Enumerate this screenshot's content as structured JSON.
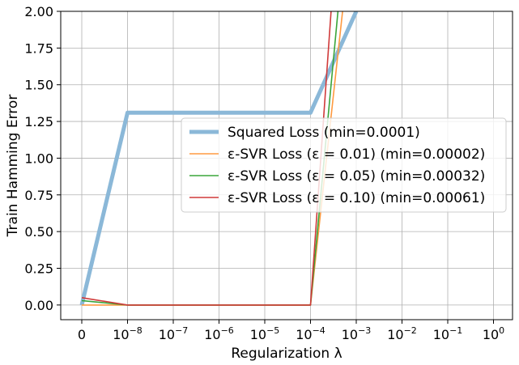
{
  "chart_data": {
    "type": "line",
    "xlabel": "Regularization λ",
    "ylabel": "Train Hamming Error",
    "ylim": [
      -0.1,
      2.0
    ],
    "yticks": [
      0.0,
      0.25,
      0.5,
      0.75,
      1.0,
      1.25,
      1.5,
      1.75,
      2.0
    ],
    "ytick_labels": [
      "0.00",
      "0.25",
      "0.50",
      "0.75",
      "1.00",
      "1.25",
      "1.50",
      "1.75",
      "2.00"
    ],
    "xticks": [
      {
        "base": "0",
        "exp": ""
      },
      {
        "base": "10",
        "exp": "−8"
      },
      {
        "base": "10",
        "exp": "−7"
      },
      {
        "base": "10",
        "exp": "−6"
      },
      {
        "base": "10",
        "exp": "−5"
      },
      {
        "base": "10",
        "exp": "−4"
      },
      {
        "base": "10",
        "exp": "−3"
      },
      {
        "base": "10",
        "exp": "−2"
      },
      {
        "base": "10",
        "exp": "−1"
      },
      {
        "base": "10",
        "exp": "0"
      }
    ],
    "grid": true,
    "legend_position": "center-right",
    "series": [
      {
        "name": "Squared Loss (min=0.0001)",
        "color": "#8bb8d8",
        "width": 5,
        "points": [
          [
            0,
            0.0001
          ],
          [
            1,
            1.31
          ],
          [
            5,
            1.31
          ],
          [
            6,
            2.0
          ]
        ]
      },
      {
        "name": "ε-SVR Loss (ε = 0.01) (min=0.00002)",
        "color": "#ff9a40",
        "width": 1.6,
        "points": [
          [
            0,
            2e-05
          ],
          [
            1,
            0.0
          ],
          [
            5,
            0.0
          ],
          [
            5.7,
            2.0
          ]
        ]
      },
      {
        "name": "ε-SVR Loss (ε = 0.05) (min=0.00032)",
        "color": "#3aa53a",
        "width": 1.6,
        "points": [
          [
            0,
            0.03
          ],
          [
            1,
            0.0
          ],
          [
            5,
            0.0
          ],
          [
            5.6,
            2.0
          ]
        ]
      },
      {
        "name": "ε-SVR Loss (ε = 0.10) (min=0.00061)",
        "color": "#d03a3a",
        "width": 1.6,
        "points": [
          [
            0,
            0.05
          ],
          [
            1,
            0.0
          ],
          [
            5,
            0.0
          ],
          [
            5.45,
            2.0
          ]
        ]
      }
    ]
  }
}
